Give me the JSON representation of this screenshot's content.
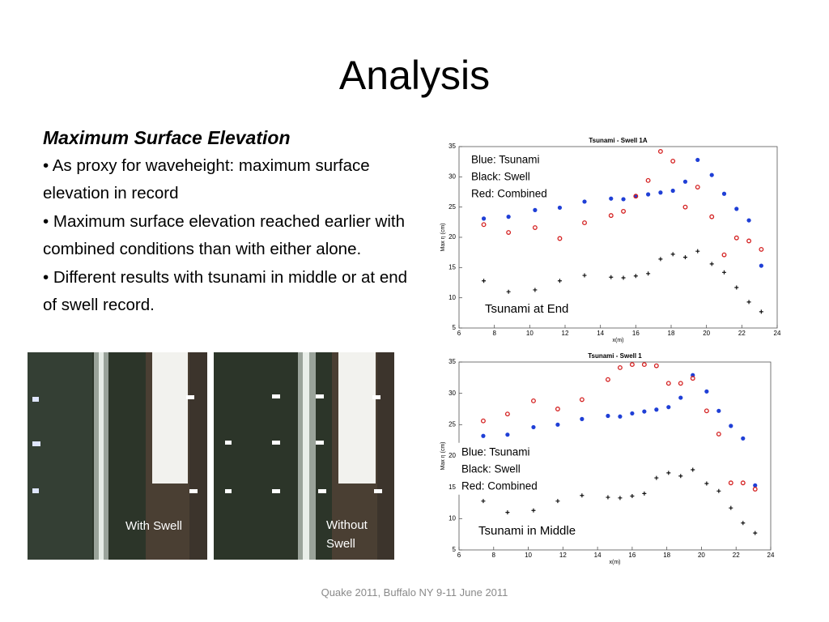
{
  "slide": {
    "title": "Analysis",
    "heading": "Maximum Surface Elevation",
    "bullets": [
      "• As proxy for waveheight: maximum surface elevation in record",
      "•  Maximum surface elevation reached earlier with combined conditions than with either alone.",
      "•  Different results with tsunami in middle or at end of swell record."
    ],
    "photos": [
      {
        "caption": "With Swell"
      },
      {
        "caption": "Without Swell"
      }
    ],
    "footer": "Quake 2011, Buffalo NY 9-11 June 2011"
  },
  "chart_data": [
    {
      "type": "scatter",
      "title": "Tsunami - Swell 1A",
      "x_label": "x(m)",
      "y_label": "Max η (cm)",
      "annotation": "Tsunami at End",
      "legend": "upper left",
      "xlim": [
        6,
        24
      ],
      "xticks": [
        6,
        8,
        10,
        12,
        14,
        16,
        18,
        20,
        22,
        24
      ],
      "ylim": [
        5,
        35
      ],
      "yticks": [
        5,
        10,
        15,
        20,
        25,
        30,
        35
      ],
      "x": [
        7.4,
        8.8,
        10.3,
        11.7,
        13.1,
        14.6,
        15.3,
        16.0,
        16.7,
        17.4,
        18.1,
        18.8,
        19.5,
        20.3,
        21.0,
        21.7,
        22.4,
        23.1
      ],
      "series": [
        {
          "name": "Blue: Tsunami",
          "color": "#1f3fd6",
          "marker": "dot",
          "values": [
            23.1,
            23.4,
            24.5,
            24.9,
            25.9,
            26.4,
            26.3,
            26.8,
            27.1,
            27.4,
            27.7,
            29.2,
            32.8,
            30.3,
            27.2,
            24.7,
            22.8,
            15.3
          ]
        },
        {
          "name": "Black: Swell",
          "color": "#111111",
          "marker": "plus",
          "values": [
            12.8,
            11.0,
            11.3,
            12.8,
            13.7,
            13.4,
            13.3,
            13.6,
            14.0,
            16.4,
            17.2,
            16.7,
            17.7,
            15.6,
            14.2,
            11.7,
            9.3,
            7.7
          ]
        },
        {
          "name": "Red: Combined",
          "color": "#d42020",
          "marker": "circle",
          "values": [
            22.1,
            20.8,
            21.6,
            19.8,
            22.4,
            23.6,
            24.3,
            26.8,
            29.4,
            34.2,
            32.6,
            25.0,
            28.3,
            23.4,
            17.1,
            19.9,
            19.4,
            18.0
          ]
        }
      ]
    },
    {
      "type": "scatter",
      "title": "Tsunami - Swell 1",
      "x_label": "x(m)",
      "y_label": "Max η (cm)",
      "annotation": "Tsunami in Middle",
      "legend": "center left",
      "xlim": [
        6,
        24
      ],
      "xticks": [
        6,
        8,
        10,
        12,
        14,
        16,
        18,
        20,
        22,
        24
      ],
      "ylim": [
        5,
        35
      ],
      "yticks": [
        5,
        10,
        15,
        20,
        25,
        30,
        35
      ],
      "x": [
        7.4,
        8.8,
        10.3,
        11.7,
        13.1,
        14.6,
        15.3,
        16.0,
        16.7,
        17.4,
        18.1,
        18.8,
        19.5,
        20.3,
        21.0,
        21.7,
        22.4,
        23.1
      ],
      "series": [
        {
          "name": "Blue: Tsunami",
          "color": "#1f3fd6",
          "marker": "dot",
          "values": [
            23.2,
            23.4,
            24.6,
            25.0,
            25.9,
            26.4,
            26.3,
            26.8,
            27.1,
            27.4,
            27.8,
            29.3,
            32.9,
            30.3,
            27.2,
            24.8,
            22.8,
            15.3
          ]
        },
        {
          "name": "Black: Swell",
          "color": "#111111",
          "marker": "plus",
          "values": [
            12.8,
            11.0,
            11.3,
            12.8,
            13.7,
            13.4,
            13.3,
            13.6,
            14.0,
            16.5,
            17.3,
            16.8,
            17.8,
            15.6,
            14.4,
            11.7,
            9.3,
            7.7
          ]
        },
        {
          "name": "Red: Combined",
          "color": "#d42020",
          "marker": "circle",
          "values": [
            25.6,
            26.7,
            28.8,
            27.5,
            29.0,
            32.2,
            34.1,
            34.6,
            34.6,
            34.4,
            31.6,
            31.6,
            32.4,
            27.2,
            23.5,
            15.7,
            15.7,
            14.7
          ]
        }
      ]
    }
  ]
}
